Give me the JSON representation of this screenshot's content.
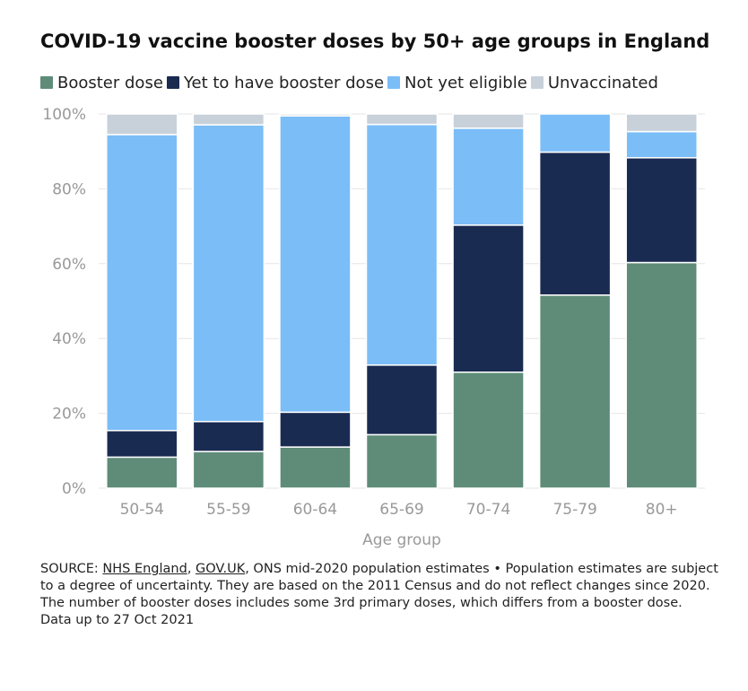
{
  "chart_data": {
    "type": "bar",
    "stacked": true,
    "title": "COVID-19 vaccine booster doses by 50+ age groups in England",
    "xlabel": "Age group",
    "ylabel": "",
    "ylim": [
      0,
      100
    ],
    "y_ticks": [
      {
        "value": 0,
        "label": "0%"
      },
      {
        "value": 20,
        "label": "20%"
      },
      {
        "value": 40,
        "label": "40%"
      },
      {
        "value": 60,
        "label": "60%"
      },
      {
        "value": 80,
        "label": "80%"
      },
      {
        "value": 100,
        "label": "100%"
      }
    ],
    "grid": true,
    "legend_placement": "top-left",
    "categories": [
      "50-54",
      "55-59",
      "60-64",
      "65-69",
      "70-74",
      "75-79",
      "80+"
    ],
    "series": [
      {
        "name": "Booster dose",
        "color": "#5e8c79",
        "values": [
          8.3,
          9.8,
          11.0,
          14.3,
          31.0,
          51.6,
          60.3
        ]
      },
      {
        "name": "Yet to have booster dose",
        "color": "#1a2b52",
        "values": [
          7.1,
          8.0,
          9.3,
          18.6,
          39.3,
          38.2,
          28.0
        ]
      },
      {
        "name": "Not yet eligible",
        "color": "#7bbdf7",
        "values": [
          79.1,
          79.3,
          79.2,
          64.3,
          25.9,
          10.2,
          7.0
        ]
      },
      {
        "name": "Unvaccinated",
        "color": "#c8d1da",
        "values": [
          5.5,
          2.9,
          0.5,
          2.8,
          3.8,
          0.0,
          4.7
        ]
      }
    ]
  },
  "footer": {
    "source_prefix": "SOURCE: ",
    "link_1": "NHS England",
    "separator": ", ",
    "link_2": "GOV.UK",
    "source_rest": ", ONS mid-2020 population estimates • Population estimates are subject to a degree of uncertainty. They are based on the 2011 Census and do not reflect changes since 2020. The number of booster doses includes some 3rd primary doses, which differs from a booster dose.",
    "data_date": "Data up to 27 Oct 2021"
  },
  "colors": {
    "grid": "#e6e6e6",
    "axis_text": "#999999",
    "bar_stroke": "#ffffff"
  }
}
